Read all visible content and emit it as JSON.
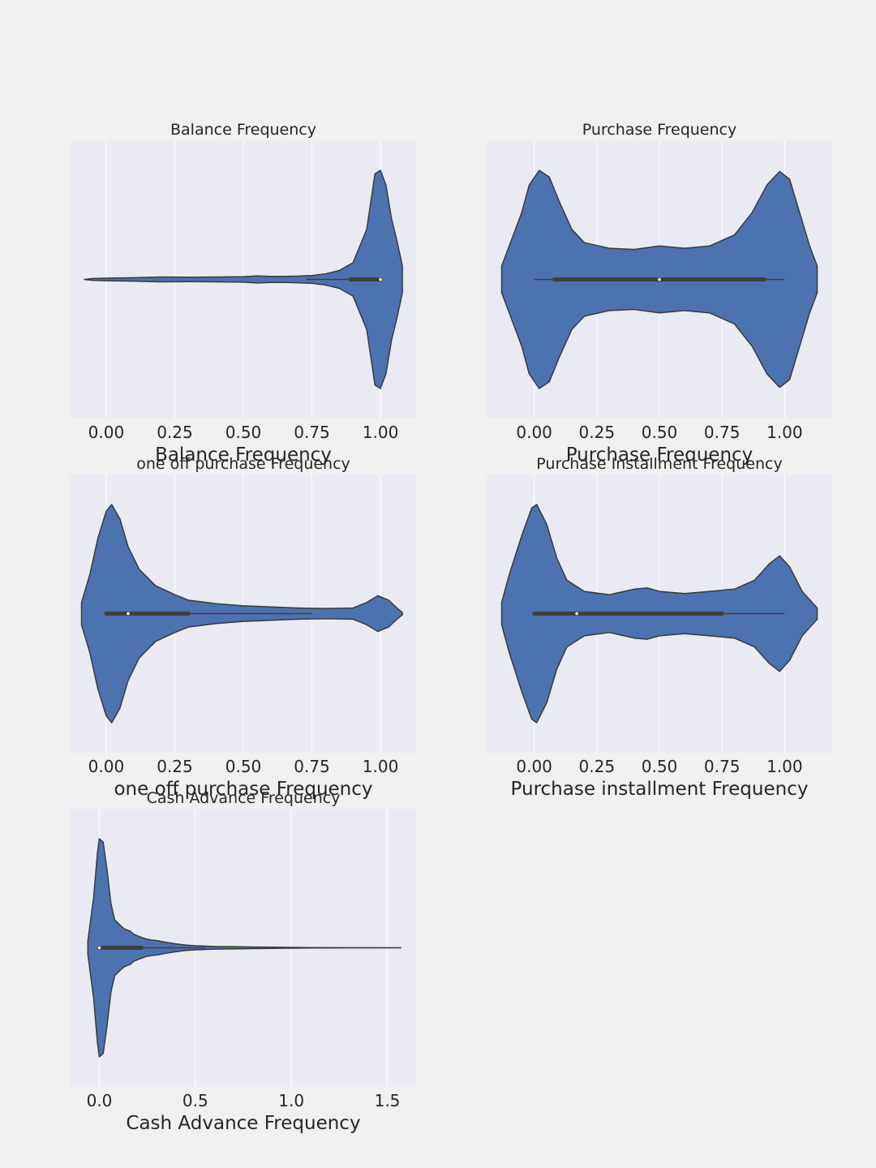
{
  "chart_data": [
    {
      "type": "violin",
      "title": "Balance Frequency",
      "xlabel": "Balance Frequency",
      "ticks": [
        0.0,
        0.25,
        0.5,
        0.75,
        1.0
      ],
      "tick_labels": [
        "0.00",
        "0.25",
        "0.50",
        "0.75",
        "1.00"
      ],
      "xlim": [
        -0.13,
        1.13
      ],
      "color": "#4c72b0",
      "density": [
        [
          -0.08,
          0.0
        ],
        [
          -0.05,
          0.008
        ],
        [
          0.0,
          0.012
        ],
        [
          0.1,
          0.015
        ],
        [
          0.2,
          0.022
        ],
        [
          0.3,
          0.02
        ],
        [
          0.4,
          0.022
        ],
        [
          0.5,
          0.025
        ],
        [
          0.55,
          0.032
        ],
        [
          0.6,
          0.027
        ],
        [
          0.65,
          0.028
        ],
        [
          0.7,
          0.03
        ],
        [
          0.75,
          0.035
        ],
        [
          0.8,
          0.05
        ],
        [
          0.85,
          0.08
        ],
        [
          0.9,
          0.15
        ],
        [
          0.95,
          0.45
        ],
        [
          0.98,
          0.95
        ],
        [
          1.0,
          0.98
        ],
        [
          1.02,
          0.85
        ],
        [
          1.04,
          0.55
        ],
        [
          1.06,
          0.35
        ],
        [
          1.08,
          0.12
        ],
        [
          1.08,
          0.0
        ]
      ],
      "box": {
        "whisker_low": 0.73,
        "q1": 0.89,
        "median": 1.0,
        "q3": 1.0,
        "whisker_high": 1.0
      }
    },
    {
      "type": "violin",
      "title": "Purchase Frequency",
      "xlabel": "Purchase Frequency",
      "ticks": [
        0.0,
        0.25,
        0.5,
        0.75,
        1.0
      ],
      "tick_labels": [
        "0.00",
        "0.25",
        "0.50",
        "0.75",
        "1.00"
      ],
      "xlim": [
        -0.19,
        1.19
      ],
      "color": "#4c72b0",
      "density": [
        [
          -0.13,
          0.0
        ],
        [
          -0.13,
          0.12
        ],
        [
          -0.1,
          0.3
        ],
        [
          -0.05,
          0.6
        ],
        [
          -0.02,
          0.85
        ],
        [
          0.02,
          0.98
        ],
        [
          0.06,
          0.92
        ],
        [
          0.1,
          0.7
        ],
        [
          0.15,
          0.45
        ],
        [
          0.2,
          0.33
        ],
        [
          0.3,
          0.28
        ],
        [
          0.4,
          0.27
        ],
        [
          0.5,
          0.3
        ],
        [
          0.6,
          0.28
        ],
        [
          0.7,
          0.3
        ],
        [
          0.8,
          0.4
        ],
        [
          0.87,
          0.6
        ],
        [
          0.93,
          0.85
        ],
        [
          0.98,
          0.97
        ],
        [
          1.02,
          0.9
        ],
        [
          1.06,
          0.6
        ],
        [
          1.1,
          0.3
        ],
        [
          1.13,
          0.12
        ],
        [
          1.13,
          0.0
        ]
      ],
      "box": {
        "whisker_low": 0.0,
        "q1": 0.08,
        "median": 0.5,
        "q3": 0.92,
        "whisker_high": 1.0
      }
    },
    {
      "type": "violin",
      "title": "one off purchase Frequency",
      "xlabel": "one off purchase Frequency",
      "ticks": [
        0.0,
        0.25,
        0.5,
        0.75,
        1.0
      ],
      "tick_labels": [
        "0.00",
        "0.25",
        "0.50",
        "0.75",
        "1.00"
      ],
      "xlim": [
        -0.13,
        1.13
      ],
      "color": "#4c72b0",
      "density": [
        [
          -0.09,
          0.0
        ],
        [
          -0.09,
          0.1
        ],
        [
          -0.06,
          0.35
        ],
        [
          -0.03,
          0.68
        ],
        [
          0.0,
          0.92
        ],
        [
          0.02,
          0.98
        ],
        [
          0.05,
          0.85
        ],
        [
          0.08,
          0.6
        ],
        [
          0.12,
          0.4
        ],
        [
          0.18,
          0.25
        ],
        [
          0.25,
          0.17
        ],
        [
          0.3,
          0.12
        ],
        [
          0.4,
          0.09
        ],
        [
          0.5,
          0.07
        ],
        [
          0.6,
          0.06
        ],
        [
          0.7,
          0.05
        ],
        [
          0.8,
          0.045
        ],
        [
          0.9,
          0.05
        ],
        [
          0.95,
          0.1
        ],
        [
          0.99,
          0.16
        ],
        [
          1.03,
          0.12
        ],
        [
          1.06,
          0.05
        ],
        [
          1.08,
          0.01
        ],
        [
          1.08,
          0.0
        ]
      ],
      "box": {
        "whisker_low": 0.0,
        "q1": 0.0,
        "median": 0.08,
        "q3": 0.3,
        "whisker_high": 0.75
      }
    },
    {
      "type": "violin",
      "title": "Purchase Installment Frequency",
      "xlabel": "Purchase installment Frequency",
      "ticks": [
        0.0,
        0.25,
        0.5,
        0.75,
        1.0
      ],
      "tick_labels": [
        "0.00",
        "0.25",
        "0.50",
        "0.75",
        "1.00"
      ],
      "xlim": [
        -0.19,
        1.19
      ],
      "color": "#4c72b0",
      "density": [
        [
          -0.13,
          0.0
        ],
        [
          -0.13,
          0.1
        ],
        [
          -0.1,
          0.35
        ],
        [
          -0.05,
          0.7
        ],
        [
          -0.01,
          0.95
        ],
        [
          0.01,
          0.98
        ],
        [
          0.05,
          0.8
        ],
        [
          0.09,
          0.5
        ],
        [
          0.13,
          0.3
        ],
        [
          0.2,
          0.2
        ],
        [
          0.3,
          0.17
        ],
        [
          0.4,
          0.22
        ],
        [
          0.45,
          0.23
        ],
        [
          0.5,
          0.2
        ],
        [
          0.6,
          0.18
        ],
        [
          0.7,
          0.2
        ],
        [
          0.8,
          0.22
        ],
        [
          0.88,
          0.3
        ],
        [
          0.94,
          0.45
        ],
        [
          0.98,
          0.52
        ],
        [
          1.02,
          0.42
        ],
        [
          1.07,
          0.2
        ],
        [
          1.13,
          0.05
        ],
        [
          1.13,
          0.0
        ]
      ],
      "box": {
        "whisker_low": 0.0,
        "q1": 0.0,
        "median": 0.17,
        "q3": 0.75,
        "whisker_high": 1.0
      }
    },
    {
      "type": "violin",
      "title": "Cash Advance Frequency",
      "xlabel": "Cash Advance Frequency",
      "ticks": [
        0.0,
        0.5,
        1.0,
        1.5
      ],
      "tick_labels": [
        "0.0",
        "0.5",
        "1.0",
        "1.5"
      ],
      "xlim": [
        -0.15,
        1.65
      ],
      "color": "#4c72b0",
      "density": [
        [
          -0.06,
          0.0
        ],
        [
          -0.06,
          0.06
        ],
        [
          -0.03,
          0.45
        ],
        [
          -0.01,
          0.85
        ],
        [
          0.0,
          0.98
        ],
        [
          0.02,
          0.95
        ],
        [
          0.04,
          0.7
        ],
        [
          0.06,
          0.4
        ],
        [
          0.08,
          0.25
        ],
        [
          0.11,
          0.2
        ],
        [
          0.13,
          0.17
        ],
        [
          0.16,
          0.15
        ],
        [
          0.18,
          0.12
        ],
        [
          0.21,
          0.1
        ],
        [
          0.24,
          0.08
        ],
        [
          0.27,
          0.07
        ],
        [
          0.3,
          0.065
        ],
        [
          0.33,
          0.055
        ],
        [
          0.36,
          0.045
        ],
        [
          0.4,
          0.035
        ],
        [
          0.45,
          0.025
        ],
        [
          0.5,
          0.018
        ],
        [
          0.6,
          0.012
        ],
        [
          0.7,
          0.01
        ],
        [
          0.8,
          0.007
        ],
        [
          0.9,
          0.005
        ],
        [
          1.0,
          0.004
        ],
        [
          1.1,
          0.002
        ],
        [
          1.3,
          0.001
        ],
        [
          1.57,
          0.0
        ]
      ],
      "box": {
        "whisker_low": 0.0,
        "q1": 0.0,
        "median": 0.0,
        "q3": 0.22,
        "whisker_high": 0.55
      }
    }
  ]
}
